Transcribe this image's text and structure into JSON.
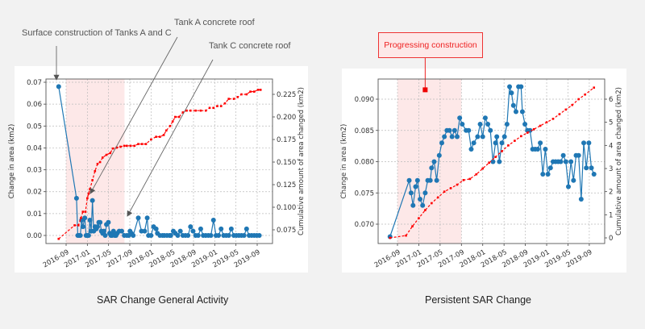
{
  "annotations": {
    "surface": "Surface construction of Tanks A and C",
    "tank_a": "Tank A concrete roof",
    "tank_c": "Tank C concrete roof",
    "progressing": "Progressing construction"
  },
  "captions": {
    "left": "SAR Change General Activity",
    "right": "Persistent SAR Change"
  },
  "colors": {
    "series_blue": "#1f77b4",
    "cumulative_red": "#ff0000",
    "shade": "#fde8e8",
    "annotation_gray": "#666666"
  },
  "chart_data": [
    {
      "type": "line",
      "title": "SAR Change General Activity",
      "xlabel": "",
      "ylabel": "Change in area (km2)",
      "ylabel_right": "Cumulative amount of area changed (km2)",
      "x_tick_labels": [
        "2016-09",
        "2017-01",
        "2017-05",
        "2017-09",
        "2018-01",
        "2018-05",
        "2018-09",
        "2019-01",
        "2019-05",
        "2019-09"
      ],
      "y_ticks_left": [
        "0.00",
        "0.01",
        "0.02",
        "0.03",
        "0.04",
        "0.05",
        "0.06",
        "0.07"
      ],
      "y_ticks_right": [
        "0.075",
        "0.100",
        "0.125",
        "0.150",
        "0.175",
        "0.200",
        "0.225"
      ],
      "ylim": [
        -0.0015,
        0.0715
      ],
      "ylim_right": [
        0.0635,
        0.2365
      ],
      "grid": true,
      "shaded_range": [
        "2016-09",
        "2017-08"
      ],
      "series": [
        {
          "name": "Change in area",
          "axis": "left",
          "style": "solid-dots",
          "x": [
            2016.55,
            2016.83,
            2016.85,
            2016.87,
            2016.89,
            2016.91,
            2016.93,
            2016.96,
            2016.98,
            2017.0,
            2017.02,
            2017.04,
            2017.06,
            2017.08,
            2017.1,
            2017.12,
            2017.14,
            2017.16,
            2017.18,
            2017.2,
            2017.22,
            2017.24,
            2017.26,
            2017.28,
            2017.3,
            2017.33,
            2017.35,
            2017.37,
            2017.39,
            2017.41,
            2017.43,
            2017.45,
            2017.47,
            2017.5,
            2017.54,
            2017.58,
            2017.62,
            2017.65,
            2017.67,
            2017.69,
            2017.72,
            2017.8,
            2017.85,
            2017.9,
            2017.94,
            2017.96,
            2018.0,
            2018.04,
            2018.08,
            2018.1,
            2018.14,
            2018.18,
            2018.21,
            2018.25,
            2018.29,
            2018.31,
            2018.35,
            2018.38,
            2018.42,
            2018.46,
            2018.5,
            2018.54,
            2018.58,
            2018.62,
            2018.66,
            2018.7,
            2018.74,
            2018.78,
            2018.82,
            2018.86,
            2018.9,
            2018.94,
            2018.98,
            2019.02,
            2019.06,
            2019.1,
            2019.14,
            2019.18,
            2019.22,
            2019.26,
            2019.3,
            2019.34,
            2019.38,
            2019.42,
            2019.46,
            2019.5,
            2019.54,
            2019.58,
            2019.62,
            2019.66,
            2019.7
          ],
          "values": [
            0.068,
            0.017,
            0.0,
            0.0,
            0.0,
            0.007,
            0.004,
            0.008,
            0.0,
            0.0,
            0.0,
            0.007,
            0.002,
            0.016,
            0.002,
            0.004,
            0.003,
            0.004,
            0.006,
            0.006,
            0.002,
            0.001,
            0.002,
            0.0,
            0.005,
            0.006,
            0.001,
            0.0,
            0.0,
            0.002,
            0.0,
            0.0,
            0.001,
            0.002,
            0.002,
            0.0,
            0.0,
            0.0,
            0.002,
            0.001,
            0.0,
            0.008,
            0.002,
            0.002,
            0.008,
            0.0,
            0.0,
            0.004,
            0.003,
            0.001,
            0.0,
            0.0,
            0.0,
            0.0,
            0.0,
            0.0,
            0.002,
            0.001,
            0.0,
            0.002,
            0.0,
            0.0,
            0.0,
            0.004,
            0.002,
            0.0,
            0.0,
            0.003,
            0.0,
            0.0,
            0.0,
            0.0,
            0.007,
            0.0,
            0.0,
            0.003,
            0.0,
            0.0,
            0.0,
            0.003,
            0.0,
            0.0,
            0.0,
            0.0,
            0.0,
            0.003,
            0.0,
            0.0,
            0.0,
            0.0,
            0.0
          ]
        },
        {
          "name": "Cumulative",
          "axis": "right",
          "style": "dashed-red",
          "x": [
            2016.55,
            2016.8,
            2016.86,
            2016.9,
            2016.93,
            2016.97,
            2017.0,
            2017.02,
            2017.04,
            2017.08,
            2017.12,
            2017.16,
            2017.2,
            2017.24,
            2017.3,
            2017.36,
            2017.4,
            2017.46,
            2017.52,
            2017.58,
            2017.62,
            2017.68,
            2017.74,
            2017.8,
            2017.86,
            2017.92,
            2018.0,
            2018.08,
            2018.14,
            2018.2,
            2018.24,
            2018.3,
            2018.34,
            2018.38,
            2018.44,
            2018.5,
            2018.56,
            2018.62,
            2018.7,
            2018.78,
            2018.86,
            2018.92,
            2018.98,
            2019.04,
            2019.1,
            2019.16,
            2019.22,
            2019.3,
            2019.36,
            2019.42,
            2019.5,
            2019.56,
            2019.62,
            2019.68,
            2019.72
          ],
          "values": [
            0.065,
            0.08,
            0.08,
            0.088,
            0.095,
            0.095,
            0.11,
            0.115,
            0.12,
            0.13,
            0.14,
            0.148,
            0.15,
            0.155,
            0.158,
            0.16,
            0.165,
            0.166,
            0.167,
            0.168,
            0.168,
            0.168,
            0.168,
            0.17,
            0.17,
            0.17,
            0.175,
            0.178,
            0.178,
            0.18,
            0.185,
            0.19,
            0.195,
            0.2,
            0.2,
            0.205,
            0.207,
            0.207,
            0.207,
            0.207,
            0.207,
            0.21,
            0.21,
            0.212,
            0.212,
            0.215,
            0.22,
            0.22,
            0.222,
            0.225,
            0.225,
            0.228,
            0.228,
            0.23,
            0.23
          ]
        }
      ]
    },
    {
      "type": "line",
      "title": "Persistent SAR Change",
      "xlabel": "",
      "ylabel": "Change in area (km2)",
      "ylabel_right": "Cumulative amount of area changed (km2)",
      "x_tick_labels": [
        "2016-09",
        "2017-01",
        "2017-05",
        "2017-09",
        "2018-01",
        "2018-05",
        "2018-09",
        "2019-01",
        "2019-05",
        "2019-09"
      ],
      "y_ticks_left": [
        "0.070",
        "0.075",
        "0.080",
        "0.085",
        "0.090"
      ],
      "y_ticks_right": [
        "0",
        "1",
        "2",
        "3",
        "4",
        "5",
        "6"
      ],
      "ylim": [
        0.0669,
        0.0934
      ],
      "ylim_right": [
        -0.25,
        6.9
      ],
      "grid": true,
      "shaded_range": [
        "2016-09",
        "2017-09"
      ],
      "marker_annotation": {
        "label": "Progressing construction",
        "x": 2017.1,
        "y": 0.0915
      },
      "series": [
        {
          "name": "Change in area",
          "axis": "left",
          "style": "solid-dots",
          "x": [
            2016.55,
            2016.85,
            2016.88,
            2016.91,
            2016.95,
            2016.98,
            2017.02,
            2017.06,
            2017.1,
            2017.14,
            2017.18,
            2017.2,
            2017.24,
            2017.28,
            2017.32,
            2017.36,
            2017.4,
            2017.44,
            2017.48,
            2017.52,
            2017.56,
            2017.6,
            2017.64,
            2017.68,
            2017.74,
            2017.78,
            2017.82,
            2017.86,
            2017.92,
            2017.96,
            2018.0,
            2018.04,
            2018.08,
            2018.12,
            2018.16,
            2018.2,
            2018.22,
            2018.26,
            2018.3,
            2018.34,
            2018.38,
            2018.42,
            2018.45,
            2018.48,
            2018.52,
            2018.56,
            2018.6,
            2018.62,
            2018.66,
            2018.7,
            2018.74,
            2018.78,
            2018.82,
            2018.86,
            2018.9,
            2018.94,
            2018.98,
            2019.02,
            2019.06,
            2019.1,
            2019.14,
            2019.18,
            2019.22,
            2019.26,
            2019.3,
            2019.34,
            2019.38,
            2019.42,
            2019.46,
            2019.5,
            2019.54,
            2019.58,
            2019.62,
            2019.66,
            2019.7,
            2019.74
          ],
          "values": [
            0.068,
            0.077,
            0.075,
            0.073,
            0.076,
            0.077,
            0.074,
            0.073,
            0.075,
            0.077,
            0.077,
            0.079,
            0.08,
            0.077,
            0.081,
            0.083,
            0.084,
            0.085,
            0.085,
            0.084,
            0.085,
            0.084,
            0.087,
            0.086,
            0.085,
            0.085,
            0.082,
            0.083,
            0.084,
            0.086,
            0.084,
            0.087,
            0.086,
            0.085,
            0.08,
            0.083,
            0.084,
            0.08,
            0.083,
            0.084,
            0.086,
            0.092,
            0.091,
            0.089,
            0.088,
            0.092,
            0.092,
            0.088,
            0.086,
            0.085,
            0.085,
            0.082,
            0.082,
            0.082,
            0.083,
            0.078,
            0.082,
            0.078,
            0.079,
            0.08,
            0.08,
            0.08,
            0.08,
            0.081,
            0.08,
            0.076,
            0.08,
            0.077,
            0.081,
            0.081,
            0.074,
            0.083,
            0.079,
            0.083,
            0.079,
            0.078
          ]
        },
        {
          "name": "Cumulative",
          "axis": "right",
          "style": "dashed-red",
          "x": [
            2016.55,
            2016.8,
            2016.9,
            2017.0,
            2017.1,
            2017.2,
            2017.3,
            2017.4,
            2017.5,
            2017.6,
            2017.7,
            2017.8,
            2017.9,
            2018.0,
            2018.1,
            2018.2,
            2018.3,
            2018.4,
            2018.5,
            2018.6,
            2018.7,
            2018.8,
            2018.9,
            2019.0,
            2019.1,
            2019.2,
            2019.3,
            2019.4,
            2019.5,
            2019.6,
            2019.74
          ],
          "values": [
            0.0,
            0.1,
            0.5,
            0.85,
            1.2,
            1.5,
            1.75,
            2.0,
            2.15,
            2.3,
            2.5,
            2.55,
            2.75,
            3.0,
            3.25,
            3.5,
            3.75,
            4.0,
            4.2,
            4.4,
            4.55,
            4.7,
            4.85,
            5.0,
            5.15,
            5.35,
            5.55,
            5.75,
            6.0,
            6.2,
            6.5
          ]
        }
      ]
    }
  ]
}
